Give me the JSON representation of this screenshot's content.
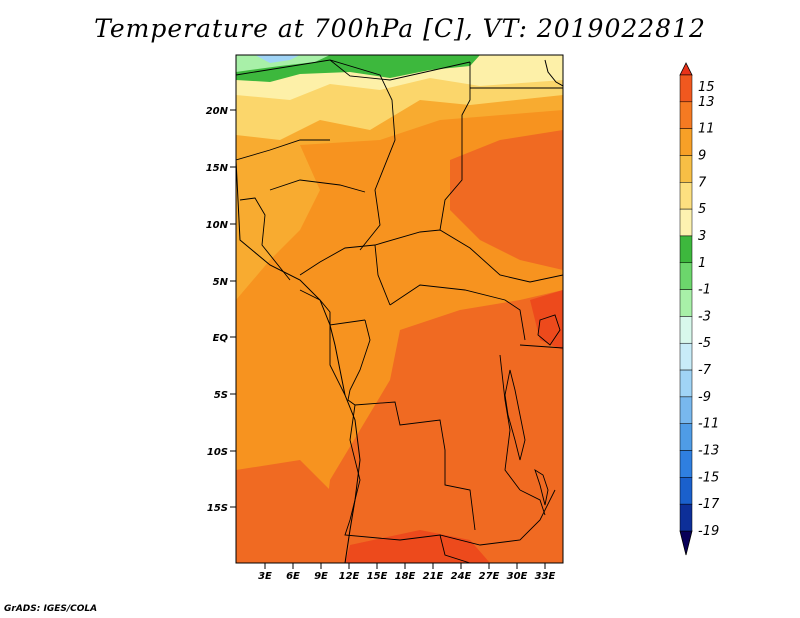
{
  "title": "Temperature at 700hPa [C], VT: 2019022812",
  "credit": "GrADS: IGES/COLA",
  "lat_labels": [
    "20N",
    "15N",
    "10N",
    "5N",
    "EQ",
    "5S",
    "10S",
    "15S"
  ],
  "lon_labels": [
    "3E",
    "6E",
    "9E",
    "12E",
    "15E",
    "18E",
    "21E",
    "24E",
    "27E",
    "30E",
    "33E"
  ],
  "colorbar": {
    "labels": [
      "15",
      "13",
      "11",
      "9",
      "7",
      "5",
      "3",
      "1",
      "-1",
      "-3",
      "-5",
      "-7",
      "-9",
      "-11",
      "-13",
      "-15",
      "-17",
      "-19"
    ],
    "colors": [
      "#e8321a",
      "#f0581f",
      "#f57a22",
      "#f7a027",
      "#f7bf45",
      "#fde080",
      "#fdf2b0",
      "#3db83d",
      "#6cd66c",
      "#a8f0a8",
      "#d8f8ec",
      "#c8ecf8",
      "#a0d4f6",
      "#78b8ee",
      "#4f9ce6",
      "#2f7fe0",
      "#1a60cc",
      "#0d2f98",
      "#080058"
    ]
  },
  "colors": {
    "warmest": "#ed4a1c",
    "warm": "#f06a22",
    "mid": "#f7931f",
    "mild": "#f8ab30",
    "cool": "#fbd66b",
    "pale": "#fdf0a8",
    "green": "#3db83d",
    "lightgreen": "#a8f0a8",
    "blue": "#a0d4f6",
    "border": "#000000"
  }
}
